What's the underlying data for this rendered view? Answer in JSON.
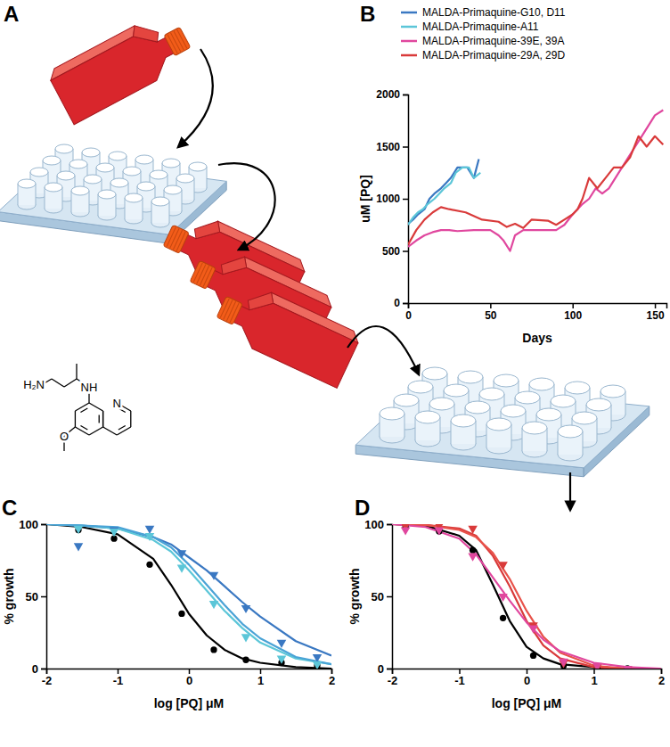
{
  "diagram": {
    "label": "A",
    "atoms": [
      "H₂N",
      "NH",
      "O",
      "N"
    ]
  },
  "chart_data": [
    {
      "type": "line",
      "title": "B",
      "x_label": "Days",
      "y_label": "uM [PQ]",
      "xlim": [
        0,
        157
      ],
      "xticks": [
        0,
        50,
        100,
        150
      ],
      "ylim": [
        0,
        2000
      ],
      "yticks": [
        0,
        500,
        1000,
        1500,
        2000
      ],
      "legend": "top-left",
      "series": [
        {
          "name": "MALDA-Primaquine-G10, D11",
          "color": "#3a78c2",
          "x": [
            0,
            3,
            6,
            10,
            13,
            16,
            20,
            23,
            26,
            30,
            33,
            36,
            40,
            43
          ],
          "values": [
            760,
            800,
            850,
            900,
            1000,
            1050,
            1100,
            1150,
            1200,
            1300,
            1300,
            1300,
            1200,
            1380
          ]
        },
        {
          "name": "MALDA-Primaquine-A11",
          "color": "#5cc6d8",
          "x": [
            0,
            3,
            6,
            9,
            12,
            16,
            19,
            22,
            26,
            29,
            33,
            37,
            40,
            44
          ],
          "values": [
            750,
            820,
            870,
            900,
            950,
            1000,
            1050,
            1100,
            1150,
            1250,
            1300,
            1300,
            1200,
            1250
          ]
        },
        {
          "name": "MALDA-Primaquine-39E, 39A",
          "color": "#e0479e",
          "x": [
            0,
            5,
            10,
            15,
            20,
            25,
            30,
            40,
            50,
            55,
            58,
            62,
            65,
            70,
            80,
            90,
            95,
            100,
            103,
            106,
            110,
            114,
            118,
            122,
            126,
            130,
            134,
            138,
            142,
            146,
            150,
            155
          ],
          "values": [
            540,
            600,
            650,
            680,
            700,
            700,
            690,
            700,
            700,
            650,
            600,
            500,
            650,
            700,
            700,
            700,
            750,
            850,
            900,
            950,
            1000,
            1100,
            1050,
            1100,
            1200,
            1300,
            1400,
            1500,
            1600,
            1700,
            1800,
            1850
          ]
        },
        {
          "name": "MALDA-Primaquine-29A, 29D",
          "color": "#d93a3a",
          "x": [
            0,
            5,
            10,
            15,
            20,
            25,
            35,
            45,
            55,
            60,
            65,
            70,
            75,
            85,
            90,
            95,
            100,
            103,
            106,
            110,
            115,
            120,
            125,
            130,
            135,
            140,
            145,
            150,
            155
          ],
          "values": [
            560,
            700,
            800,
            870,
            920,
            900,
            870,
            800,
            780,
            730,
            760,
            720,
            800,
            790,
            750,
            800,
            850,
            900,
            1000,
            1200,
            1100,
            1200,
            1300,
            1300,
            1400,
            1600,
            1500,
            1600,
            1520
          ]
        }
      ]
    },
    {
      "type": "line",
      "title": "C",
      "x_label": "log [PQ] μM",
      "y_label": "% growth",
      "xlim": [
        -2,
        2
      ],
      "xticks": [
        -2,
        -1,
        0,
        1,
        2
      ],
      "ylim": [
        0,
        100
      ],
      "yticks": [
        0,
        50,
        100
      ],
      "series": [
        {
          "type": "line",
          "color": "#000000",
          "x": [
            -2,
            -1.5,
            -1,
            -0.5,
            -0.25,
            0,
            0.25,
            0.5,
            0.75,
            1,
            1.5,
            2
          ],
          "values": [
            100,
            98,
            93,
            76,
            58,
            38,
            23,
            13,
            7,
            4,
            1,
            0
          ]
        },
        {
          "type": "line",
          "color": "#3a78c2",
          "x": [
            -2,
            -1.5,
            -1,
            -0.5,
            -0.25,
            0,
            0.25,
            0.5,
            0.75,
            1,
            1.5,
            2
          ],
          "values": [
            100,
            99,
            97,
            91,
            86,
            77,
            68,
            57,
            46,
            36,
            19,
            9
          ]
        },
        {
          "type": "line",
          "color": "#5cc6d8",
          "x": [
            -2,
            -1.5,
            -1,
            -0.5,
            -0.25,
            0,
            0.25,
            0.5,
            0.75,
            1,
            1.5,
            2
          ],
          "values": [
            100,
            99,
            97,
            89,
            81,
            68,
            54,
            40,
            28,
            18,
            7,
            3
          ]
        },
        {
          "type": "line",
          "color": "#4aa3d6",
          "x": [
            -2,
            -1.5,
            -1,
            -0.5,
            -0.25,
            0,
            0.25,
            0.5,
            0.75,
            1,
            1.5,
            2
          ],
          "values": [
            100,
            99,
            98,
            91,
            84,
            72,
            58,
            44,
            31,
            21,
            8,
            3
          ]
        },
        {
          "type": "scatter",
          "marker": "circle",
          "color": "#000000",
          "x": [
            -1.55,
            -1.05,
            -0.55,
            -0.1,
            0.35,
            0.8,
            1.3,
            1.8
          ],
          "values": [
            96,
            90,
            72,
            38,
            13,
            6,
            4,
            2
          ]
        },
        {
          "type": "scatter",
          "marker": "triangle-down",
          "color": "#3a78c2",
          "x": [
            -1.55,
            -1.05,
            -0.55,
            -0.1,
            0.35,
            0.8,
            1.3,
            1.8
          ],
          "values": [
            85,
            96,
            97,
            80,
            65,
            42,
            18,
            8
          ]
        },
        {
          "type": "scatter",
          "marker": "triangle-down",
          "color": "#5cc6d8",
          "x": [
            -1.55,
            -1.05,
            -0.55,
            -0.1,
            0.35,
            0.8,
            1.3,
            1.8
          ],
          "values": [
            97,
            95,
            92,
            70,
            45,
            22,
            7,
            3
          ]
        }
      ]
    },
    {
      "type": "line",
      "title": "D",
      "x_label": "log [PQ] μM",
      "y_label": "% growth",
      "xlim": [
        -2,
        2
      ],
      "xticks": [
        -2,
        -1,
        0,
        1,
        2
      ],
      "ylim": [
        0,
        100
      ],
      "yticks": [
        0,
        50,
        100
      ],
      "series": [
        {
          "type": "line",
          "color": "#000000",
          "x": [
            -2,
            -1.5,
            -1,
            -0.75,
            -0.5,
            -0.25,
            0,
            0.25,
            0.5,
            1,
            1.5,
            2
          ],
          "values": [
            100,
            99,
            92,
            82,
            58,
            33,
            15,
            7,
            3,
            1,
            0,
            0
          ]
        },
        {
          "type": "line",
          "color": "#d93a3a",
          "x": [
            -2,
            -1.5,
            -1,
            -0.75,
            -0.5,
            -0.25,
            0,
            0.25,
            0.5,
            1,
            1.5,
            2
          ],
          "values": [
            100,
            99.5,
            97,
            92,
            78,
            57,
            33,
            16,
            7,
            1,
            0,
            0
          ]
        },
        {
          "type": "line",
          "color": "#e8524a",
          "x": [
            -2,
            -1.5,
            -1,
            -0.75,
            -0.5,
            -0.25,
            0,
            0.25,
            0.5,
            1,
            1.5,
            2
          ],
          "values": [
            100,
            99.5,
            96,
            91,
            80,
            62,
            40,
            22,
            11,
            2,
            0,
            0
          ]
        },
        {
          "type": "line",
          "color": "#e0479e",
          "x": [
            -2,
            -1.5,
            -1,
            -0.75,
            -0.5,
            -0.25,
            0,
            0.25,
            0.5,
            1,
            1.5,
            2
          ],
          "values": [
            100,
            98,
            90,
            79,
            63,
            47,
            32,
            20,
            12,
            4,
            1,
            0
          ]
        },
        {
          "type": "scatter",
          "marker": "circle",
          "color": "#000000",
          "x": [
            -1.8,
            -1.3,
            -0.8,
            -0.35,
            0.1,
            0.55,
            1.05,
            1.5
          ],
          "values": [
            98,
            95,
            82,
            35,
            9,
            2,
            0,
            0
          ]
        },
        {
          "type": "scatter",
          "marker": "triangle-down",
          "color": "#d93a3a",
          "x": [
            -1.8,
            -1.3,
            -0.8,
            -0.35,
            0.1,
            0.55,
            1.05,
            1.5
          ],
          "values": [
            99,
            99,
            97,
            72,
            30,
            4,
            1,
            0
          ]
        },
        {
          "type": "scatter",
          "marker": "triangle-down",
          "color": "#e0479e",
          "x": [
            -1.8,
            -1.3,
            -0.8,
            -0.35,
            0.1,
            0.55,
            1.05,
            1.5
          ],
          "values": [
            96,
            96,
            78,
            50,
            28,
            5,
            2,
            0
          ]
        }
      ]
    }
  ]
}
